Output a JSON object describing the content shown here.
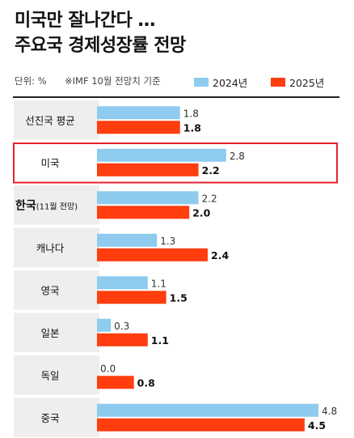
{
  "title": {
    "line1": "미국만 잘나간다 …",
    "line2": "주요국 경제성장률 전망"
  },
  "subhead": {
    "unit": "단위: %",
    "note": "※IMF 10월 전망치 기준"
  },
  "colors": {
    "series_2024": "#8ecbef",
    "series_2025": "#ff3d0f",
    "row_bg": "#eeeeee",
    "highlight": "#e5202c"
  },
  "chart_data": {
    "type": "bar",
    "orientation": "horizontal",
    "categories": [
      "선진국 평균",
      "미국",
      "한국",
      "캐나다",
      "영국",
      "일본",
      "독일",
      "중국"
    ],
    "category_notes": [
      "",
      "",
      "(11월 전망)",
      "",
      "",
      "",
      "",
      ""
    ],
    "highlighted_category": "미국",
    "series": [
      {
        "name": "2024년",
        "values": [
          1.8,
          2.8,
          2.2,
          1.3,
          1.1,
          0.3,
          0.0,
          4.8
        ]
      },
      {
        "name": "2025년",
        "values": [
          1.8,
          2.2,
          2.0,
          2.4,
          1.5,
          1.1,
          0.8,
          4.5
        ]
      }
    ],
    "value_labels": [
      [
        "1.8",
        "2.8",
        "2.2",
        "1.3",
        "1.1",
        "0.3",
        "0.0",
        "4.8"
      ],
      [
        "1.8",
        "2.2",
        "2.0",
        "2.4",
        "1.5",
        "1.1",
        "0.8",
        "4.5"
      ]
    ],
    "xlim": [
      0,
      4.8
    ],
    "legend_position": "top-right",
    "grid": false
  }
}
